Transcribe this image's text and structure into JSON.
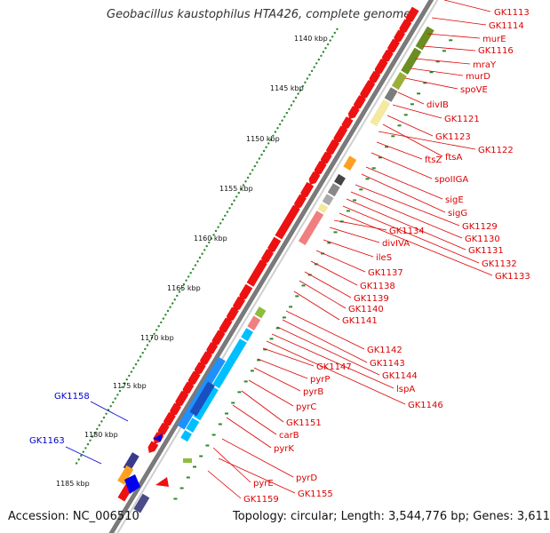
{
  "title": "Geobacillus kaustophilus HTA426, complete genome",
  "accession": "Accession: NC_006510",
  "topology": "Topology: circular; Length: 3,544,776 bp; Genes: 3,611",
  "kbp_ticks": [
    "1140 kbp",
    "1145 kbp",
    "1150 kbp",
    "1155 kbp",
    "1160 kbp",
    "1165 kbp",
    "1170 kbp",
    "1175 kbp",
    "1180 kbp",
    "1185 kbp"
  ],
  "colors": {
    "gene_label": "#dd0000",
    "highlight_label": "#0000cc",
    "backbone": "#808080",
    "tick_dot": "#2a8a2a"
  },
  "gene_labels": [
    "GK1113",
    "GK1114",
    "murE",
    "GK1116",
    "mraY",
    "murD",
    "spoVE",
    "divIB",
    "GK1121",
    "GK1123",
    "ftsA",
    "GK1122",
    "ftsZ",
    "spoIIGA",
    "sigE",
    "sigG",
    "GK1129",
    "GK1130",
    "GK1131",
    "GK1132",
    "GK1133",
    "GK1134",
    "divIVA",
    "ileS",
    "GK1137",
    "GK1138",
    "GK1139",
    "GK1140",
    "GK1141",
    "GK1142",
    "GK1143",
    "GK1144",
    "lspA",
    "GK1146",
    "GK1147",
    "pyrP",
    "pyrB",
    "pyrC",
    "GK1151",
    "carB",
    "pyrK",
    "pyrD",
    "pyrE",
    "GK1155",
    "GK1159"
  ],
  "highlight_labels": [
    "GK1158",
    "GK1163"
  ]
}
